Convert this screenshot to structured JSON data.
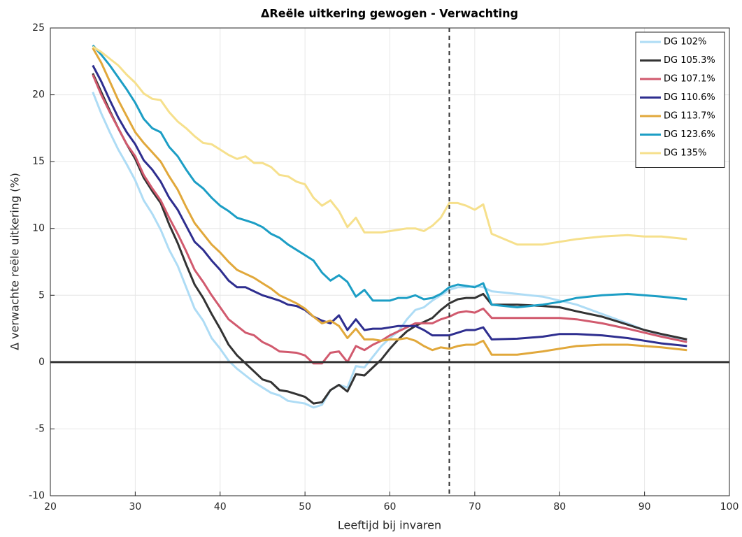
{
  "chart_data": {
    "type": "line",
    "title": "ΔReële uitkering gewogen - Verwachting",
    "x_label": "Leeftijd bij invaren",
    "y_label": "Δ verwachte reële uitkering (%)",
    "x": [
      25,
      26,
      27,
      28,
      29,
      30,
      31,
      32,
      33,
      34,
      35,
      36,
      37,
      38,
      39,
      40,
      41,
      42,
      43,
      44,
      45,
      46,
      47,
      48,
      49,
      50,
      51,
      52,
      53,
      54,
      55,
      56,
      57,
      58,
      59,
      60,
      61,
      62,
      63,
      64,
      65,
      66,
      67,
      68,
      69,
      70,
      71,
      72,
      75,
      78,
      80,
      82,
      85,
      88,
      90,
      92,
      95
    ],
    "series": [
      {
        "name": "DG 102%",
        "color": "#aedcf5",
        "values": [
          20.2,
          18.6,
          17.2,
          15.9,
          14.8,
          13.6,
          12.1,
          11.1,
          9.9,
          8.4,
          7.2,
          5.6,
          4.0,
          3.1,
          1.8,
          1.0,
          0.1,
          -0.5,
          -1.0,
          -1.5,
          -1.9,
          -2.3,
          -2.5,
          -2.9,
          -3.0,
          -3.1,
          -3.4,
          -3.2,
          -2.1,
          -1.7,
          -1.9,
          -0.3,
          -0.4,
          0.4,
          1.2,
          1.8,
          2.3,
          3.2,
          3.9,
          4.1,
          4.6,
          5.0,
          5.4,
          5.6,
          5.6,
          5.7,
          5.6,
          5.3,
          5.1,
          4.9,
          4.6,
          4.3,
          3.6,
          2.9,
          2.4,
          2.0,
          1.6
        ]
      },
      {
        "name": "DG 105.3%",
        "color": "#333333",
        "values": [
          21.6,
          20.2,
          18.8,
          17.5,
          16.3,
          15.2,
          13.8,
          12.8,
          11.9,
          10.3,
          8.9,
          7.3,
          5.8,
          4.8,
          3.6,
          2.5,
          1.3,
          0.5,
          -0.1,
          -0.7,
          -1.3,
          -1.5,
          -2.1,
          -2.2,
          -2.4,
          -2.6,
          -3.1,
          -3.0,
          -2.1,
          -1.7,
          -2.2,
          -0.9,
          -1.0,
          -0.4,
          0.2,
          1.0,
          1.7,
          2.3,
          2.7,
          3.0,
          3.3,
          3.9,
          4.4,
          4.7,
          4.8,
          4.8,
          5.1,
          4.3,
          4.3,
          4.2,
          4.1,
          3.8,
          3.4,
          2.8,
          2.4,
          2.1,
          1.7
        ]
      },
      {
        "name": "DG 107.1%",
        "color": "#d15a6e",
        "values": [
          21.5,
          20.0,
          18.7,
          17.5,
          16.3,
          15.4,
          14.0,
          13.0,
          12.1,
          10.8,
          9.6,
          8.3,
          6.9,
          6.0,
          5.0,
          4.1,
          3.2,
          2.7,
          2.2,
          2.0,
          1.5,
          1.2,
          0.8,
          0.75,
          0.7,
          0.5,
          -0.1,
          -0.1,
          0.7,
          0.8,
          0.0,
          1.2,
          0.9,
          1.3,
          1.6,
          2.0,
          2.3,
          2.6,
          2.9,
          2.9,
          2.9,
          3.2,
          3.4,
          3.7,
          3.8,
          3.7,
          4.0,
          3.3,
          3.3,
          3.3,
          3.3,
          3.2,
          2.9,
          2.5,
          2.2,
          1.9,
          1.5
        ]
      },
      {
        "name": "DG 110.6%",
        "color": "#2e2e8f",
        "values": [
          22.2,
          21.0,
          19.6,
          18.3,
          17.2,
          16.3,
          15.1,
          14.4,
          13.5,
          12.3,
          11.4,
          10.2,
          9.0,
          8.4,
          7.6,
          6.9,
          6.1,
          5.6,
          5.6,
          5.3,
          5.0,
          4.8,
          4.6,
          4.3,
          4.2,
          3.9,
          3.4,
          3.1,
          2.9,
          3.5,
          2.4,
          3.2,
          2.4,
          2.5,
          2.5,
          2.6,
          2.7,
          2.7,
          2.7,
          2.4,
          2.0,
          2.0,
          2.0,
          2.2,
          2.4,
          2.4,
          2.6,
          1.7,
          1.75,
          1.9,
          2.1,
          2.1,
          2.0,
          1.8,
          1.6,
          1.4,
          1.2
        ]
      },
      {
        "name": "DG 113.7%",
        "color": "#e1a83b",
        "values": [
          23.5,
          22.4,
          21.0,
          19.6,
          18.4,
          17.2,
          16.4,
          15.7,
          15.0,
          13.9,
          12.9,
          11.6,
          10.4,
          9.6,
          8.8,
          8.2,
          7.5,
          6.9,
          6.6,
          6.3,
          5.9,
          5.5,
          5.0,
          4.7,
          4.4,
          4.0,
          3.4,
          2.9,
          3.1,
          2.7,
          1.8,
          2.5,
          1.7,
          1.7,
          1.6,
          1.7,
          1.7,
          1.8,
          1.6,
          1.2,
          0.9,
          1.1,
          1.0,
          1.2,
          1.3,
          1.3,
          1.6,
          0.55,
          0.55,
          0.8,
          1.0,
          1.2,
          1.3,
          1.3,
          1.2,
          1.1,
          0.9
        ]
      },
      {
        "name": "DG 123.6%",
        "color": "#1c9ec5",
        "values": [
          23.7,
          23.0,
          22.2,
          21.3,
          20.4,
          19.4,
          18.2,
          17.5,
          17.2,
          16.1,
          15.4,
          14.4,
          13.5,
          13.0,
          12.3,
          11.7,
          11.3,
          10.8,
          10.6,
          10.4,
          10.1,
          9.6,
          9.3,
          8.8,
          8.4,
          8.0,
          7.6,
          6.7,
          6.1,
          6.5,
          6.0,
          4.9,
          5.4,
          4.6,
          4.6,
          4.6,
          4.8,
          4.8,
          5.0,
          4.7,
          4.8,
          5.1,
          5.6,
          5.8,
          5.7,
          5.6,
          5.9,
          4.3,
          4.1,
          4.3,
          4.5,
          4.8,
          5.0,
          5.1,
          5.0,
          4.9,
          4.7
        ]
      },
      {
        "name": "DG 135%",
        "color": "#f6e08c",
        "values": [
          23.6,
          23.2,
          22.7,
          22.2,
          21.5,
          20.9,
          20.1,
          19.7,
          19.6,
          18.7,
          18.0,
          17.5,
          16.9,
          16.4,
          16.3,
          15.9,
          15.5,
          15.2,
          15.4,
          14.9,
          14.9,
          14.6,
          14.0,
          13.9,
          13.5,
          13.3,
          12.3,
          11.7,
          12.1,
          11.3,
          10.1,
          10.8,
          9.7,
          9.7,
          9.7,
          9.8,
          9.9,
          10.0,
          10.0,
          9.8,
          10.2,
          10.8,
          11.9,
          11.9,
          11.7,
          11.4,
          11.8,
          9.6,
          8.8,
          8.8,
          9.0,
          9.2,
          9.4,
          9.5,
          9.4,
          9.4,
          9.2
        ]
      }
    ],
    "xlim": [
      20,
      100
    ],
    "xticks": [
      20,
      30,
      40,
      50,
      60,
      70,
      80,
      90,
      100
    ],
    "ylim": [
      -10,
      25
    ],
    "yticks": [
      -10,
      -5,
      0,
      5,
      10,
      15,
      20,
      25
    ],
    "grid": true,
    "legend": "upper right",
    "vline": 67,
    "hline": 0
  }
}
